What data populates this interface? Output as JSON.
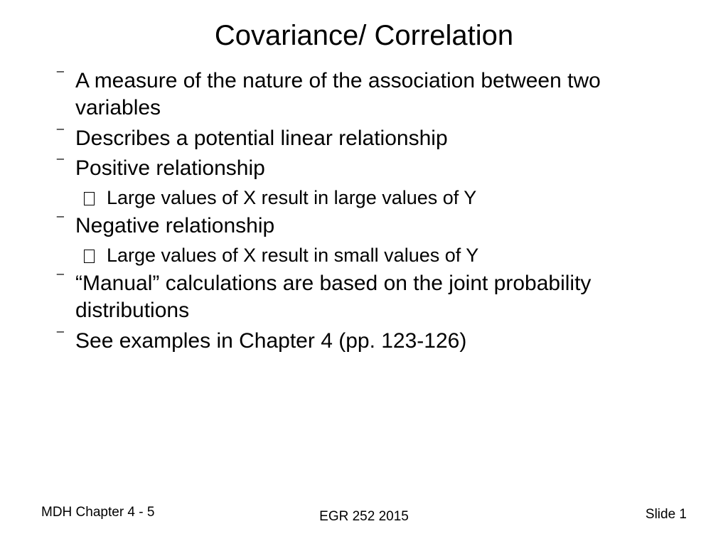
{
  "slide": {
    "title": "Covariance/ Correlation",
    "bullets": [
      {
        "level": 1,
        "text": "A measure of the nature of the association between two variables"
      },
      {
        "level": 1,
        "text": "Describes a potential linear relationship"
      },
      {
        "level": 1,
        "text": "Positive relationship"
      },
      {
        "level": 2,
        "text": "Large values of X result in large values of Y"
      },
      {
        "level": 1,
        "text": "Negative relationship"
      },
      {
        "level": 2,
        "text": "Large values of X result in small values of Y"
      },
      {
        "level": 1,
        "text": "“Manual” calculations are based on the joint probability distributions"
      },
      {
        "level": 1,
        "text": "See examples in Chapter 4 (pp. 123-126)"
      }
    ],
    "footer": {
      "left": "MDH Chapter 4 - 5",
      "center": "EGR 252 2015",
      "right": "Slide 1"
    }
  },
  "style": {
    "background_color": "#ffffff",
    "text_color": "#000000",
    "title_fontsize": 40,
    "body_fontsize": 30,
    "sub_fontsize": 27,
    "footer_fontsize": 19,
    "font_family": "Arial"
  }
}
